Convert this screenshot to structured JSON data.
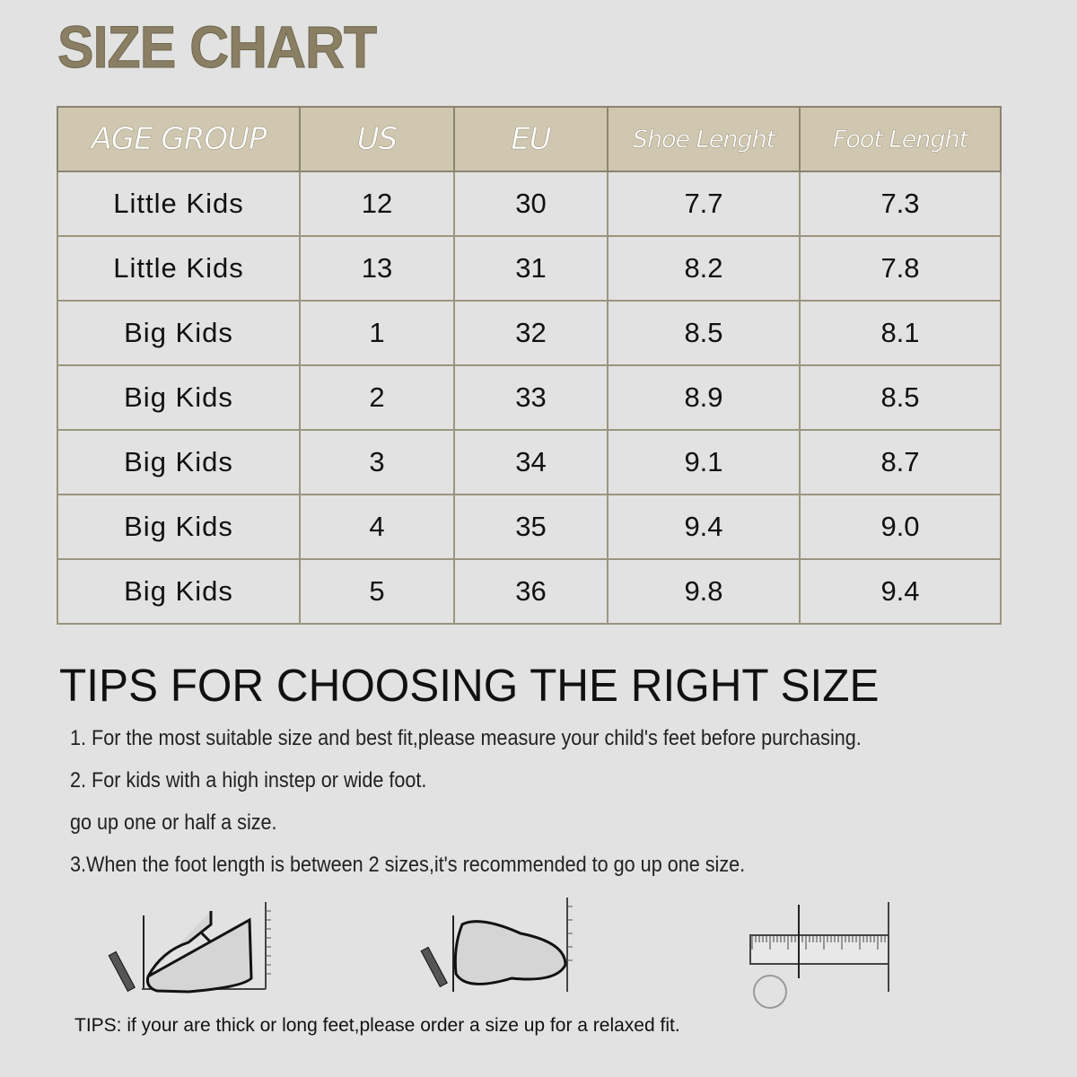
{
  "title": "SIZE CHART",
  "table": {
    "headers": [
      "AGE GROUP",
      "US",
      "EU",
      "Shoe Lenght",
      "Foot Lenght"
    ],
    "rows": [
      [
        "Little Kids",
        "12",
        "30",
        "7.7",
        "7.3"
      ],
      [
        "Little Kids",
        "13",
        "31",
        "8.2",
        "7.8"
      ],
      [
        "Big Kids",
        "1",
        "32",
        "8.5",
        "8.1"
      ],
      [
        "Big Kids",
        "2",
        "33",
        "8.9",
        "8.5"
      ],
      [
        "Big Kids",
        "3",
        "34",
        "9.1",
        "8.7"
      ],
      [
        "Big Kids",
        "4",
        "35",
        "9.4",
        "9.0"
      ],
      [
        "Big Kids",
        "5",
        "36",
        "9.8",
        "9.4"
      ]
    ]
  },
  "tips": {
    "title": "TIPS FOR CHOOSING THE RIGHT SIZE",
    "items": [
      "1. For the most suitable size and best fit,please measure your child's feet before purchasing.",
      "2. For kids with a high instep or wide foot.",
      "go up one or half a size.",
      "3.When the foot length is between 2 sizes,it's recommended to go up one size."
    ],
    "note": "TIPS: if your are thick or long feet,please order a size up for a relaxed fit."
  },
  "colors": {
    "title": "#8a7f62",
    "header_bg": "#cfc7b0",
    "background": "#e2e2e2"
  }
}
